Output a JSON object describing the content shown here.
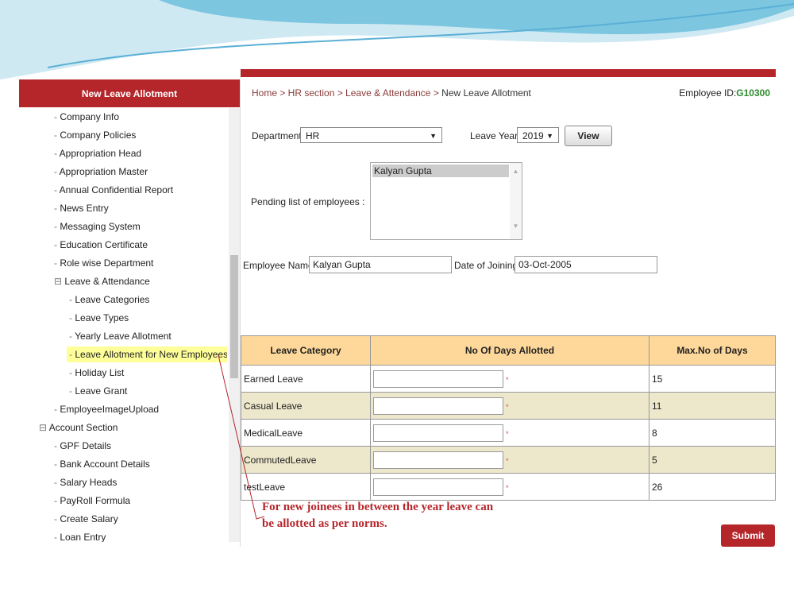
{
  "sidebar": {
    "title": "New Leave Allotment",
    "items": [
      {
        "label": "Company Info",
        "level": 1
      },
      {
        "label": "Company Policies",
        "level": 1
      },
      {
        "label": "Appropriation Head",
        "level": 1
      },
      {
        "label": "Appropriation Master",
        "level": 1
      },
      {
        "label": "Annual Confidential Report",
        "level": 1
      },
      {
        "label": "News Entry",
        "level": 1
      },
      {
        "label": "Messaging System",
        "level": 1
      },
      {
        "label": "Education Certificate",
        "level": 1
      },
      {
        "label": "Role wise Department",
        "level": 1
      },
      {
        "label": "Leave & Attendance",
        "level": 1,
        "expanded": true
      },
      {
        "label": "Leave Categories",
        "level": 2
      },
      {
        "label": "Leave Types",
        "level": 2
      },
      {
        "label": "Yearly Leave Allotment",
        "level": 2
      },
      {
        "label": "Leave Allotment for New Employees",
        "level": 2,
        "selected": true
      },
      {
        "label": "Holiday List",
        "level": 2
      },
      {
        "label": "Leave Grant",
        "level": 2
      },
      {
        "label": "EmployeeImageUpload",
        "level": 1
      },
      {
        "label": "Account Section",
        "level": 0,
        "expanded": true
      },
      {
        "label": "GPF Details",
        "level": 1
      },
      {
        "label": "Bank Account Details",
        "level": 1
      },
      {
        "label": "Salary Heads",
        "level": 1
      },
      {
        "label": "PayRoll Formula",
        "level": 1
      },
      {
        "label": "Create Salary",
        "level": 1
      },
      {
        "label": "Loan Entry",
        "level": 1
      }
    ]
  },
  "breadcrumb": {
    "path": "Home > HR section > Leave & Attendance > ",
    "current": "New Leave Allotment"
  },
  "employee_id": {
    "label": "Employee ID:",
    "value": "G10300"
  },
  "form": {
    "department_label": "Department :",
    "department_value": "HR",
    "leave_year_label": "Leave Year :",
    "leave_year_value": "2019",
    "view_label": "View",
    "pending_label": "Pending list of employees :",
    "pending_list": [
      "Kalyan Gupta"
    ],
    "employee_name_label": "Employee Name :",
    "employee_name_value": "Kalyan  Gupta",
    "doj_label": "Date of Joining :",
    "doj_value": "03-Oct-2005"
  },
  "table": {
    "headers": [
      "Leave Category",
      "No Of Days Allotted",
      "Max.No of Days"
    ],
    "rows": [
      {
        "category": "Earned Leave",
        "max": "15"
      },
      {
        "category": "Casual Leave",
        "max": "11"
      },
      {
        "category": "MedicalLeave",
        "max": "8"
      },
      {
        "category": "CommutedLeave",
        "max": "5"
      },
      {
        "category": "testLeave",
        "max": "26"
      }
    ]
  },
  "note": {
    "line1": "For new joinees in between the year leave can",
    "line2": "be allotted as per norms."
  },
  "submit_label": "Submit",
  "colors": {
    "accent": "#b5262b",
    "header": "#fdd89a",
    "highlight": "#ffff99",
    "alt_row": "#ede7cb"
  }
}
